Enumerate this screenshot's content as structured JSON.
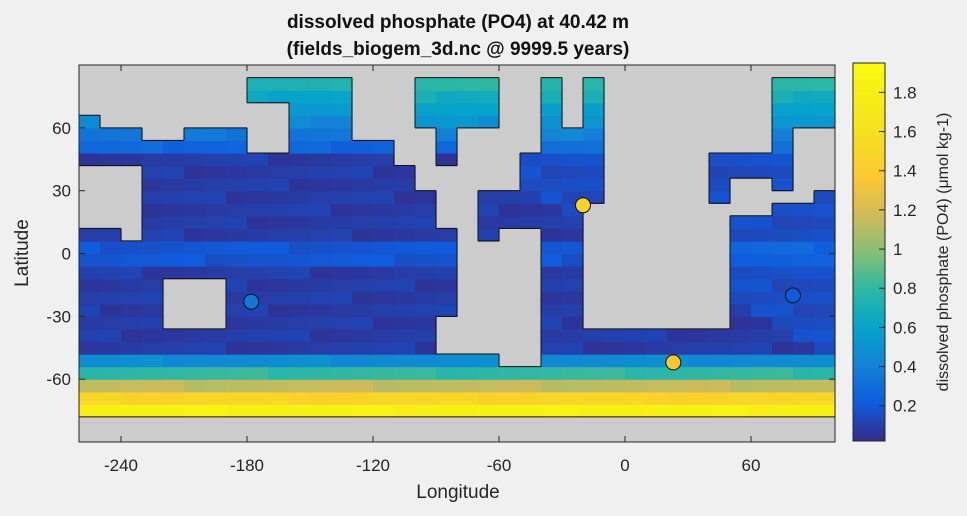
{
  "chart_data": {
    "type": "heatmap",
    "title_line1": "dissolved phosphate (PO4) at 40.42 m",
    "title_line2": "(fields_biogem_3d.nc @ 9999.5 years)",
    "xlabel": "Longitude",
    "ylabel": "Latitude",
    "colorbar_label": "dissolved phosphate (PO4) (μmol kg-1)",
    "xlim": [
      -260,
      100
    ],
    "ylim": [
      -90,
      90
    ],
    "xticks": [
      -240,
      -180,
      -120,
      -60,
      0,
      60
    ],
    "yticks": [
      -60,
      -30,
      0,
      30,
      60
    ],
    "colorbar_range": [
      0.02,
      1.95
    ],
    "colorbar_ticks": [
      0.2,
      0.4,
      0.6,
      0.8,
      1,
      1.2,
      1.4,
      1.6,
      1.8
    ],
    "colormap": "parula",
    "land_color": "#cccccc",
    "grid": false,
    "observations": [
      {
        "lon": -178,
        "lat": -23,
        "value": 0.35
      },
      {
        "lon": -20,
        "lat": 23,
        "value": 1.45
      },
      {
        "lon": 23,
        "lat": -52,
        "value": 1.35
      },
      {
        "lon": 80,
        "lat": -20,
        "value": 0.2
      }
    ],
    "colors": {
      "parula_low": "#352a87",
      "parula_mid": "#12beb9",
      "parula_high": "#f9fb0e"
    }
  }
}
